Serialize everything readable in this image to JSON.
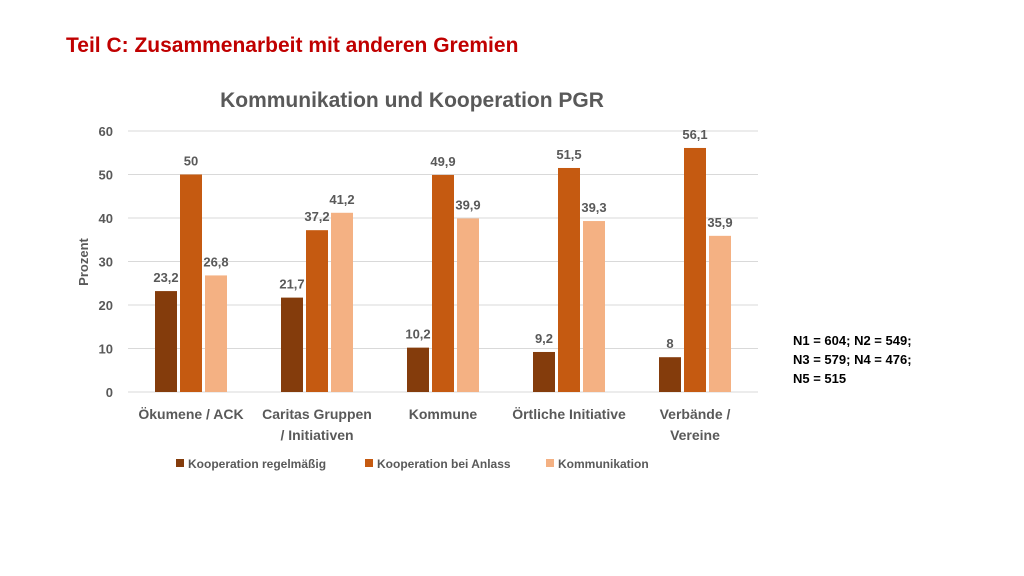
{
  "slide": {
    "title": "Teil C: Zusammenarbeit mit anderen Gremien"
  },
  "notes": [
    "N1 = 604; N2 = 549;",
    "N3 = 579; N4 = 476;",
    "N5 = 515"
  ],
  "colors": {
    "title": "#c00000",
    "text": "#595959",
    "grid": "#d9d9d9"
  },
  "chart_data": {
    "type": "bar",
    "title": "Kommunikation und Kooperation PGR",
    "xlabel": "",
    "ylabel": "Prozent",
    "ylim": [
      0,
      60
    ],
    "yticks": [
      0,
      10,
      20,
      30,
      40,
      50,
      60
    ],
    "grid": true,
    "legend_position": "bottom",
    "categories": [
      [
        "Ökumene / ACK"
      ],
      [
        "Caritas Gruppen",
        "/ Initiativen"
      ],
      [
        "Kommune"
      ],
      [
        "Örtliche Initiative"
      ],
      [
        "Verbände /",
        "Vereine"
      ]
    ],
    "series": [
      {
        "name": "Kooperation regelmäßig",
        "color": "#843c0c",
        "values": [
          23.2,
          21.7,
          10.2,
          9.2,
          8
        ],
        "labels": [
          "23,2",
          "21,7",
          "10,2",
          "9,2",
          "8"
        ]
      },
      {
        "name": "Kooperation bei Anlass",
        "color": "#c55a11",
        "values": [
          50,
          37.2,
          49.9,
          51.5,
          56.1
        ],
        "labels": [
          "50",
          "37,2",
          "49,9",
          "51,5",
          "56,1"
        ]
      },
      {
        "name": "Kommunikation",
        "color": "#f4b183",
        "values": [
          26.8,
          41.2,
          39.9,
          39.3,
          35.9
        ],
        "labels": [
          "26,8",
          "41,2",
          "39,9",
          "39,3",
          "35,9"
        ]
      }
    ]
  }
}
